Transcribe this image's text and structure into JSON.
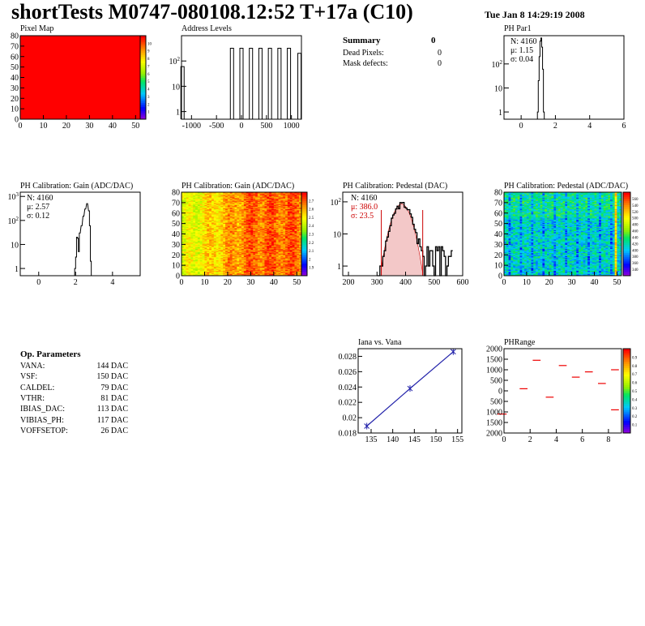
{
  "header": {
    "title": "shortTests M0747-080108.12:52 T+17a (C10)",
    "date": "Tue Jan  8 14:29:19 2008"
  },
  "summary": {
    "title": "Summary",
    "count": "0",
    "rows": [
      {
        "label": "Dead Pixels:",
        "value": "0"
      },
      {
        "label": "Mask defects:",
        "value": "0"
      }
    ]
  },
  "op_params": {
    "title": "Op. Parameters",
    "rows": [
      {
        "label": "VANA:",
        "value": "144 DAC"
      },
      {
        "label": "VSF:",
        "value": "150 DAC"
      },
      {
        "label": "CALDEL:",
        "value": "79 DAC"
      },
      {
        "label": "VTHR:",
        "value": "81 DAC"
      },
      {
        "label": "IBIAS_DAC:",
        "value": "113 DAC"
      },
      {
        "label": "VIBIAS_PH:",
        "value": "117 DAC"
      },
      {
        "label": "VOFFSETOP:",
        "value": "26 DAC"
      }
    ]
  },
  "chart_data": [
    {
      "id": "pixel-map",
      "type": "heatmap",
      "title": "Pixel Map",
      "xlim": [
        0,
        52
      ],
      "ylim": [
        0,
        80
      ],
      "xticks": [
        0,
        10,
        20,
        30,
        40,
        50
      ],
      "yticks": [
        0,
        10,
        20,
        30,
        40,
        50,
        60,
        70,
        80
      ],
      "fill_color": "#ff0000",
      "zticks": [
        "1",
        "2",
        "3",
        "4",
        "5",
        "6",
        "7",
        "8",
        "9",
        "10"
      ]
    },
    {
      "id": "address-levels",
      "type": "bar",
      "title": "Address Levels",
      "yscale": "log",
      "xlim": [
        -1200,
        1200
      ],
      "xticks": [
        -1000,
        -500,
        0,
        500,
        1000
      ],
      "xticklabels": [
        "-1000",
        "-500",
        "0",
        "500",
        "1000"
      ],
      "yticks": [
        "1",
        "10",
        "10^2"
      ],
      "peaks": [
        [
          -1180,
          60
        ],
        [
          -190,
          320
        ],
        [
          0,
          320
        ],
        [
          190,
          320
        ],
        [
          380,
          320
        ],
        [
          570,
          320
        ],
        [
          760,
          320
        ],
        [
          950,
          320
        ],
        [
          1160,
          200
        ]
      ]
    },
    {
      "id": "ph-par1",
      "type": "bar",
      "title": "PH Par1",
      "yscale": "log",
      "xlim": [
        -1,
        6
      ],
      "xticks": [
        0,
        2,
        4,
        6
      ],
      "yticks": [
        "1",
        "10",
        "10^2"
      ],
      "stats": {
        "n": "N: 4160",
        "mu": "μ: 1.15",
        "sigma": "σ: 0.04"
      },
      "bins": [
        [
          0.95,
          1
        ],
        [
          1.0,
          20
        ],
        [
          1.05,
          200
        ],
        [
          1.1,
          900
        ],
        [
          1.15,
          1200
        ],
        [
          1.2,
          500
        ],
        [
          1.25,
          60
        ],
        [
          1.3,
          1
        ]
      ]
    },
    {
      "id": "ph-gain-hist",
      "type": "bar",
      "title": "PH Calibration: Gain (ADC/DAC)",
      "yscale": "log",
      "xlim": [
        -1,
        5.5
      ],
      "xticks": [
        0,
        2,
        4
      ],
      "yticks": [
        "1",
        "10",
        "10^2",
        "10^3"
      ],
      "stats": {
        "n": "N: 4160",
        "mu": "μ: 2.57",
        "sigma": "σ: 0.12"
      },
      "bins": [
        [
          1.95,
          1
        ],
        [
          2.0,
          3
        ],
        [
          2.05,
          20
        ],
        [
          2.1,
          18
        ],
        [
          2.15,
          5
        ],
        [
          2.2,
          30
        ],
        [
          2.3,
          60
        ],
        [
          2.4,
          150
        ],
        [
          2.5,
          300
        ],
        [
          2.6,
          500
        ],
        [
          2.7,
          250
        ],
        [
          2.75,
          60
        ],
        [
          2.8,
          2
        ]
      ]
    },
    {
      "id": "ph-gain-map",
      "type": "heatmap",
      "title": "PH Calibration: Gain (ADC/DAC)",
      "xlim": [
        0,
        52
      ],
      "ylim": [
        0,
        80
      ],
      "xticks": [
        0,
        10,
        20,
        30,
        40,
        50
      ],
      "yticks": [
        0,
        10,
        20,
        30,
        40,
        50,
        60,
        70,
        80
      ],
      "zrange": [
        1.9,
        2.75
      ],
      "zticks": [
        "1.9",
        "2",
        "2.1",
        "2.2",
        "2.3",
        "2.4",
        "2.5",
        "2.6",
        "2.7"
      ]
    },
    {
      "id": "ph-pedestal-hist",
      "type": "bar",
      "title": "PH Calibration: Pedestal (DAC)",
      "yscale": "log",
      "xlim": [
        180,
        600
      ],
      "xticks": [
        200,
        300,
        400,
        500,
        600
      ],
      "yticks": [
        "1",
        "10",
        "10^2"
      ],
      "stats": {
        "n": "N: 4160",
        "mu": "μ: 386.0",
        "sigma": "σ: 23.5"
      },
      "cut_lines": [
        315,
        460
      ],
      "fit": {
        "mu": 386,
        "sigma": 23.5,
        "peak": 85
      }
    },
    {
      "id": "ph-pedestal-map",
      "type": "heatmap",
      "title": "PH Calibration: Pedestal (ADC/DAC)",
      "xlim": [
        0,
        52
      ],
      "ylim": [
        0,
        80
      ],
      "xticks": [
        0,
        10,
        20,
        30,
        40,
        50
      ],
      "yticks": [
        0,
        10,
        20,
        30,
        40,
        50,
        60,
        70,
        80
      ],
      "zrange": [
        330,
        580
      ],
      "zticks": [
        "340",
        "360",
        "380",
        "400",
        "420",
        "440",
        "460",
        "480",
        "500",
        "520",
        "540",
        "560"
      ]
    },
    {
      "id": "iana-vana",
      "type": "line",
      "title": "Iana vs. Vana",
      "xlim": [
        132,
        156
      ],
      "ylim": [
        0.018,
        0.029
      ],
      "xticks": [
        135,
        140,
        145,
        150,
        155
      ],
      "yticks": [
        0.018,
        0.02,
        0.022,
        0.024,
        0.026,
        0.028
      ],
      "points": [
        [
          134,
          0.0189
        ],
        [
          144,
          0.0238
        ],
        [
          154,
          0.0286
        ]
      ]
    },
    {
      "id": "ph-range",
      "type": "scatter",
      "title": "PHRange",
      "xlim": [
        0,
        9
      ],
      "ylim": [
        -2000,
        2000
      ],
      "xticks": [
        0,
        2,
        4,
        6,
        8
      ],
      "yticks": [
        -2000,
        -1500,
        -1000,
        -500,
        0,
        500,
        1000,
        1500,
        2000
      ],
      "yticklabels": [
        "2000",
        "1500",
        "1000",
        "500",
        "0",
        "500",
        "1000",
        "1500",
        "2000"
      ],
      "zticks": [
        "0.1",
        "0.2",
        "0.3",
        "0.4",
        "0.5",
        "0.6",
        "0.7",
        "0.8",
        "0.9"
      ],
      "segments": [
        [
          -0.5,
          0.2,
          -1100
        ],
        [
          1.2,
          1.8,
          100
        ],
        [
          2.2,
          2.8,
          1450
        ],
        [
          3.2,
          3.8,
          -300
        ],
        [
          4.2,
          4.8,
          1200
        ],
        [
          5.2,
          5.8,
          650
        ],
        [
          6.2,
          6.8,
          900
        ],
        [
          7.2,
          7.8,
          350
        ],
        [
          8.2,
          8.8,
          1000
        ],
        [
          8.2,
          8.8,
          -900
        ]
      ]
    }
  ]
}
